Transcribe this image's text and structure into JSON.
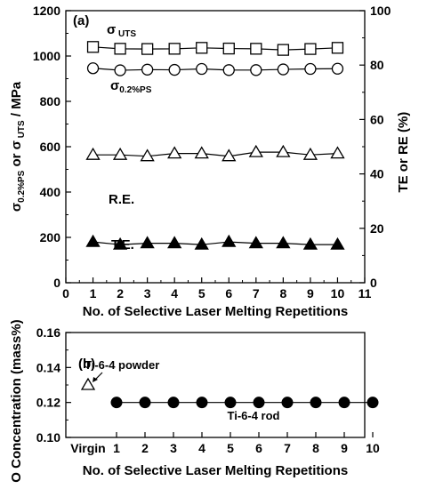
{
  "chart_data": [
    {
      "panel_label": "(a)",
      "type": "line",
      "x": [
        1,
        2,
        3,
        4,
        5,
        6,
        7,
        8,
        9,
        10
      ],
      "xlim": [
        0,
        11
      ],
      "xticks": [
        "0",
        "1",
        "2",
        "3",
        "4",
        "5",
        "6",
        "7",
        "8",
        "9",
        "10",
        "11"
      ],
      "xlabel": "No. of Selective Laser Melting Repetitions",
      "ylim_left": [
        0,
        1200
      ],
      "yticks_left": [
        "0",
        "200",
        "400",
        "600",
        "800",
        "1000",
        "1200"
      ],
      "ylabel_left": {
        "main": "σ",
        "sub1": "0.2%PS",
        "mid": " or σ",
        "sub2": " UTS",
        "end": " / MPa"
      },
      "ylim_right": [
        0,
        100
      ],
      "yticks_right": [
        "0",
        "20",
        "40",
        "60",
        "80",
        "100"
      ],
      "ylabel_right": "TE or RE  (%)",
      "grid": false,
      "series": [
        {
          "name": "σ UTS",
          "label_main": "σ",
          "label_sub": " UTS",
          "axis": "left",
          "marker": "square-open",
          "values": [
            1040,
            1032,
            1031,
            1032,
            1036,
            1033,
            1032,
            1027,
            1031,
            1036
          ]
        },
        {
          "name": "σ 0.2%PS",
          "label_main": "σ",
          "label_sub": "0.2%PS",
          "axis": "left",
          "marker": "circle-open",
          "values": [
            946,
            937,
            940,
            939,
            943,
            938,
            938,
            941,
            943,
            944
          ]
        },
        {
          "name": "R.E.",
          "axis": "right",
          "marker": "triangle-open",
          "values": [
            47,
            47,
            46.5,
            47.5,
            47.5,
            46.5,
            48,
            48,
            47,
            47.5
          ]
        },
        {
          "name": "T.E.",
          "axis": "right",
          "marker": "triangle-filled",
          "values": [
            15,
            14,
            14.5,
            14.5,
            14,
            15,
            14.5,
            14.5,
            14,
            14
          ]
        }
      ]
    },
    {
      "panel_label": "(b)",
      "type": "scatter",
      "categories": [
        "Virgin",
        "1",
        "2",
        "3",
        "4",
        "5",
        "6",
        "7",
        "8",
        "9",
        "10"
      ],
      "xlabel": "No. of Selective Laser Melting Repetitions",
      "ylabel": "O Concentration (mass%)",
      "ylim": [
        0.1,
        0.16
      ],
      "yticks": [
        "0.10",
        "0.12",
        "0.14",
        "0.16"
      ],
      "grid": false,
      "series": [
        {
          "name": "Ti-6-4 powder",
          "marker": "triangle-open",
          "points": [
            {
              "category": "Virgin",
              "value": 0.13
            }
          ]
        },
        {
          "name": "Ti-6-4 rod",
          "marker": "circle-filled",
          "points": [
            {
              "category": "1",
              "value": 0.12
            },
            {
              "category": "2",
              "value": 0.12
            },
            {
              "category": "3",
              "value": 0.12
            },
            {
              "category": "4",
              "value": 0.12
            },
            {
              "category": "5",
              "value": 0.12
            },
            {
              "category": "6",
              "value": 0.12
            },
            {
              "category": "7",
              "value": 0.12
            },
            {
              "category": "8",
              "value": 0.12
            },
            {
              "category": "9",
              "value": 0.12
            },
            {
              "category": "10",
              "value": 0.12
            }
          ]
        }
      ]
    }
  ]
}
